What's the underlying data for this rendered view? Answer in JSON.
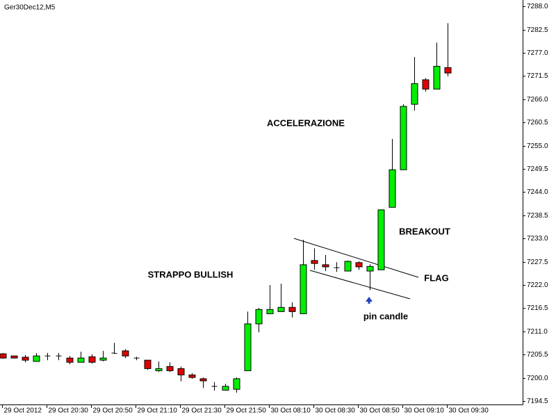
{
  "chart_data": {
    "type": "candlestick",
    "title": "Ger30Dec12,M5",
    "categories": [
      "29 Oct 2012",
      null,
      null,
      null,
      "29 Oct 20:30",
      null,
      null,
      null,
      "29 Oct 20:50",
      null,
      null,
      null,
      "29 Oct 21:10",
      null,
      null,
      null,
      "29 Oct 21:30",
      null,
      null,
      null,
      "29 Oct 21:50",
      null,
      null,
      null,
      "30 Oct 08:10",
      null,
      null,
      null,
      "30 Oct 08:30",
      null,
      null,
      null,
      "30 Oct 08:50",
      null,
      null,
      null,
      "30 Oct 09:10",
      null,
      null,
      null,
      "30 Oct 09:30"
    ],
    "open": [
      7205.7,
      7205.2,
      7204.9,
      7203.9,
      7205.2,
      7205.2,
      7204.7,
      7203.7,
      7205.0,
      7204.2,
      7205.8,
      7206.4,
      7204.7,
      7204.2,
      7201.7,
      7202.7,
      7202.2,
      7200.7,
      7199.8,
      7198.0,
      7197.1,
      7197.3,
      7201.7,
      7212.8,
      7215.2,
      7215.7,
      7216.7,
      7215.2,
      7227.8,
      7226.8,
      7226.1,
      7225.3,
      7227.3,
      7225.3,
      7225.6,
      7240.4,
      7249.3,
      7264.8,
      7270.6,
      7268.4,
      7273.5
    ],
    "high": [
      7205.9,
      7205.3,
      7205.4,
      7205.9,
      7205.9,
      7205.9,
      7205.2,
      7206.2,
      7205.6,
      7206.4,
      7208.3,
      7206.8,
      7205.0,
      7204.2,
      7203.9,
      7203.7,
      7202.7,
      7201.1,
      7200.1,
      7199.0,
      7198.6,
      7200.1,
      7215.7,
      7216.6,
      7222.0,
      7222.3,
      7217.9,
      7232.7,
      7230.7,
      7229.1,
      7227.4,
      7227.8,
      7227.6,
      7226.9,
      7239.8,
      7256.6,
      7264.8,
      7276.0,
      7271.0,
      7279.4,
      7284.0
    ],
    "low": [
      7204.5,
      7204.6,
      7203.7,
      7203.9,
      7204.2,
      7204.2,
      7203.2,
      7203.7,
      7203.4,
      7203.9,
      7205.7,
      7204.7,
      7204.2,
      7201.9,
      7201.4,
      7201.4,
      7199.2,
      7199.8,
      7197.6,
      7197.0,
      7197.0,
      7196.5,
      7201.7,
      7210.8,
      7215.2,
      7215.7,
      7214.3,
      7215.2,
      7225.6,
      7225.3,
      7225.1,
      7225.3,
      7225.6,
      7220.8,
      7225.6,
      7240.4,
      7249.3,
      7263.3,
      7267.8,
      7268.4,
      7271.4
    ],
    "close": [
      7204.7,
      7204.7,
      7204.2,
      7205.2,
      7205.2,
      7205.2,
      7203.7,
      7204.7,
      7203.7,
      7204.7,
      7205.9,
      7205.2,
      7204.7,
      7202.2,
      7202.2,
      7201.7,
      7200.7,
      7200.1,
      7199.3,
      7198.0,
      7198.0,
      7199.8,
      7212.8,
      7216.2,
      7216.2,
      7216.7,
      7215.7,
      7226.8,
      7227.1,
      7226.3,
      7226.1,
      7227.6,
      7226.3,
      7226.4,
      7239.8,
      7249.3,
      7264.3,
      7269.7,
      7268.4,
      7273.8,
      7272.2
    ],
    "up_color": "#00f000",
    "down_color": "#e00000",
    "ylim": [
      7193.7,
      7289.5
    ],
    "yticks": [
      {
        "value": 7288,
        "label": "7288.0"
      },
      {
        "value": 7282.5,
        "label": "7282.5"
      },
      {
        "value": 7277,
        "label": "7277.0"
      },
      {
        "value": 7271.5,
        "label": "7271.5"
      },
      {
        "value": 7266,
        "label": "7266.0"
      },
      {
        "value": 7260.5,
        "label": "7260.5"
      },
      {
        "value": 7255,
        "label": "7255.0"
      },
      {
        "value": 7249.5,
        "label": "7249.5"
      },
      {
        "value": 7244,
        "label": "7244.0"
      },
      {
        "value": 7238.5,
        "label": "7238.5"
      },
      {
        "value": 7233,
        "label": "7233.0"
      },
      {
        "value": 7227.5,
        "label": "7227.5"
      },
      {
        "value": 7222,
        "label": "7222.0"
      },
      {
        "value": 7216.5,
        "label": "7216.5"
      },
      {
        "value": 7211,
        "label": "7211.0"
      },
      {
        "value": 7205.5,
        "label": "7205.5"
      },
      {
        "value": 7200,
        "label": "7200.0"
      },
      {
        "value": 7194.5,
        "label": "7194.5"
      }
    ],
    "grid": false,
    "annotations": [
      "ACCELERAZIONE",
      "BREAKOUT",
      "STRAPPO BULLISH",
      "FLAG",
      "pin candle"
    ]
  }
}
